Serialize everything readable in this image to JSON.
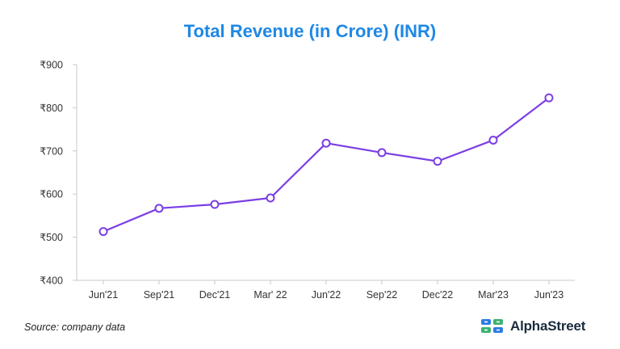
{
  "colors": {
    "title": "#1e88e5",
    "line": "#7b3fe4",
    "axis": "#c8c8c8",
    "logo_blue": "#2c7be5",
    "logo_green": "#3bb273"
  },
  "chart_data": {
    "type": "line",
    "title": "Total Revenue (in Crore) (INR)",
    "xlabel": "",
    "ylabel": "",
    "categories": [
      "Jun'21",
      "Sep'21",
      "Dec'21",
      "Mar' 22",
      "Jun'22",
      "Sep'22",
      "Dec'22",
      "Mar'23",
      "Jun'23"
    ],
    "values": [
      513,
      567,
      576,
      591,
      718,
      696,
      676,
      725,
      823
    ],
    "ylim": [
      400,
      900
    ],
    "yticks": [
      400,
      500,
      600,
      700,
      800,
      900
    ],
    "ytick_labels": [
      "₹400",
      "₹500",
      "₹600",
      "₹700",
      "₹800",
      "₹900"
    ],
    "grid": false,
    "markers": "hollow-circle"
  },
  "footer": {
    "source": "Source: company data",
    "brand": "AlphaStreet",
    "logo_icon": "alphastreet-logo-icon"
  }
}
